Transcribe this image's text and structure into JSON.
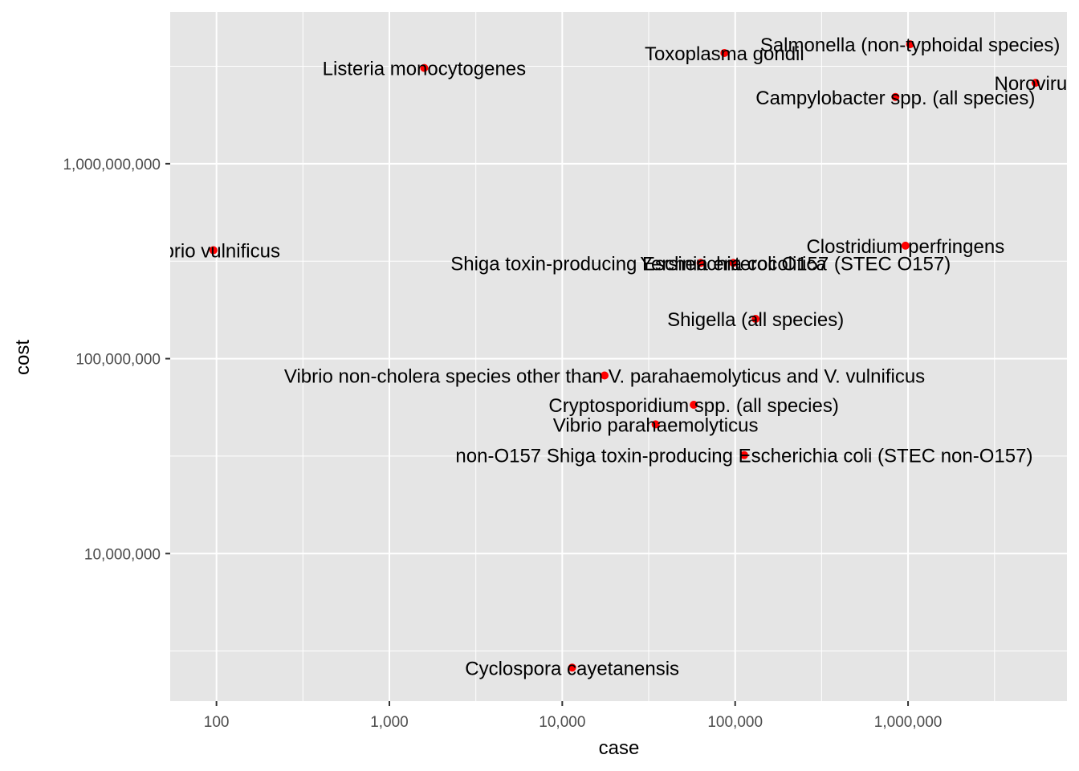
{
  "chart_data": {
    "type": "scatter",
    "title": "",
    "xlabel": "case",
    "ylabel": "cost",
    "x_scale": "log10",
    "y_scale": "log10",
    "xlim": [
      54,
      8300000
    ],
    "ylim": [
      1750000,
      6000000000
    ],
    "grid": true,
    "legend": "none",
    "point_color": "#ff0000",
    "panel_background": "#e5e5e5",
    "grid_color": "#ffffff",
    "x_ticks": [
      {
        "value": 100,
        "label": "100"
      },
      {
        "value": 1000,
        "label": "1,000"
      },
      {
        "value": 10000,
        "label": "10,000"
      },
      {
        "value": 100000,
        "label": "100,000"
      },
      {
        "value": 1000000,
        "label": "1,000,000"
      }
    ],
    "y_ticks": [
      {
        "value": 10000000,
        "label": "10,000,000"
      },
      {
        "value": 100000000,
        "label": "100,000,000"
      },
      {
        "value": 1000000000,
        "label": "1,000,000,000"
      }
    ],
    "points": [
      {
        "label": "Salmonella (non-typhoidal species)",
        "x": 1027561,
        "y": 4100000000
      },
      {
        "label": "Toxoplasma gondii",
        "x": 86686,
        "y": 3700000000
      },
      {
        "label": "Listeria monocytogenes",
        "x": 1591,
        "y": 3100000000
      },
      {
        "label": "Norovirus",
        "x": 5461731,
        "y": 2600000000
      },
      {
        "label": "Campylobacter spp. (all species)",
        "x": 845024,
        "y": 2200000000
      },
      {
        "label": "Vibrio vulnificus",
        "x": 96,
        "y": 360000000
      },
      {
        "label": "Clostridium perfringens",
        "x": 965958,
        "y": 380000000
      },
      {
        "label": "Shiga toxin-producing Escherichia coli O157 (STEC O157)",
        "x": 63153,
        "y": 310000000
      },
      {
        "label": "Yersinia enterocolitica",
        "x": 97656,
        "y": 310000000
      },
      {
        "label": "Shigella (all species)",
        "x": 131254,
        "y": 160000000
      },
      {
        "label": "Vibrio non-cholera species other than V. parahaemolyticus and V. vulnificus",
        "x": 17564,
        "y": 82000000
      },
      {
        "label": "Cryptosporidium spp. (all species)",
        "x": 57616,
        "y": 58000000
      },
      {
        "label": "Vibrio parahaemolyticus",
        "x": 34664,
        "y": 46000000
      },
      {
        "label": "non-O157 Shiga toxin-producing Escherichia coli (STEC non-O157)",
        "x": 112752,
        "y": 32000000
      },
      {
        "label": "Cyclospora cayetanensis",
        "x": 11407,
        "y": 2600000
      }
    ]
  }
}
